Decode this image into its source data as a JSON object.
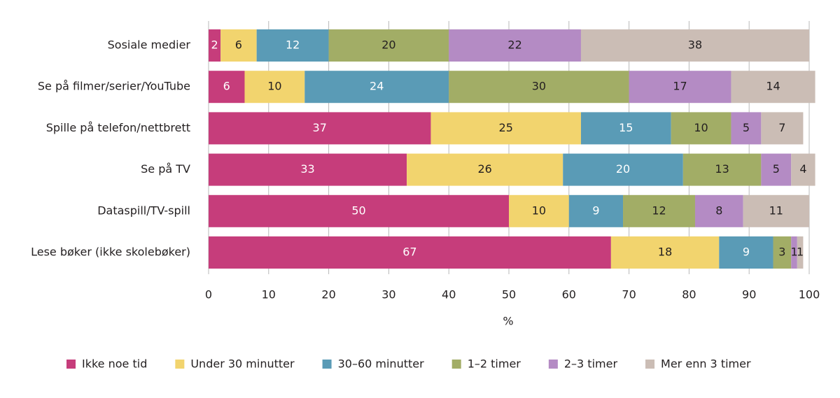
{
  "chart_data": {
    "type": "stacked_barh",
    "categories": [
      "Sosiale medier",
      "Se på filmer/serier/YouTube",
      "Spille på telefon/nettbrett",
      "Se på TV",
      "Dataspill/TV-spill",
      "Lese bøker (ikke skolebøker)"
    ],
    "series": [
      {
        "name": "Ikke noe tid",
        "color": "#c63d7b",
        "label_color": "#ffffff",
        "values": [
          2,
          6,
          37,
          33,
          50,
          67
        ]
      },
      {
        "name": "Under 30 minutter",
        "color": "#f2d46e",
        "label_color": "#231f20",
        "values": [
          6,
          10,
          25,
          26,
          10,
          18
        ]
      },
      {
        "name": "30–60 minutter",
        "color": "#5a9bb6",
        "label_color": "#ffffff",
        "values": [
          12,
          24,
          15,
          20,
          9,
          9
        ]
      },
      {
        "name": "1–2 timer",
        "color": "#a2ad66",
        "label_color": "#231f20",
        "values": [
          20,
          30,
          10,
          13,
          12,
          3
        ]
      },
      {
        "name": "2–3 timer",
        "color": "#b48bc4",
        "label_color": "#231f20",
        "values": [
          22,
          17,
          5,
          5,
          8,
          1
        ]
      },
      {
        "name": "Mer enn 3 timer",
        "color": "#cbbdb5",
        "label_color": "#231f20",
        "values": [
          38,
          14,
          7,
          4,
          11,
          1
        ]
      }
    ],
    "xlim": [
      0,
      100
    ],
    "xticks": [
      0,
      10,
      20,
      30,
      40,
      50,
      60,
      70,
      80,
      90,
      100
    ],
    "x_label": "%",
    "grid": true,
    "legend": "bottom"
  }
}
